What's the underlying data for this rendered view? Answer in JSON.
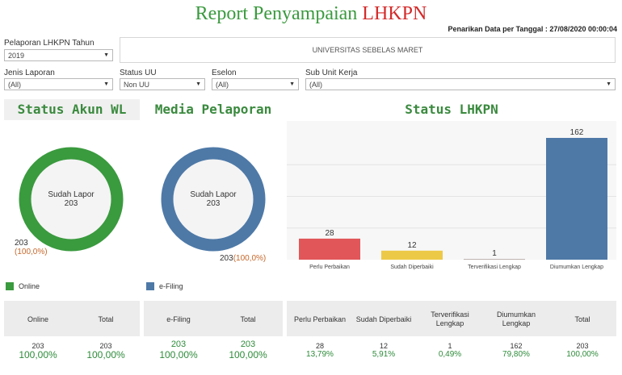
{
  "header": {
    "title_part1": "Report Penyampaian",
    "title_part2": "LHKPN",
    "data_date": "Penarikan Data per Tanggal : 27/08/2020 00:00:04"
  },
  "filters": {
    "tahun": {
      "label": "Pelaporan LHKPN Tahun",
      "value": "2019"
    },
    "institution": "UNIVERSITAS SEBELAS MARET",
    "jenis": {
      "label": "Jenis Laporan",
      "value": "(All)"
    },
    "status_uu": {
      "label": "Status UU",
      "value": "Non UU"
    },
    "eselon": {
      "label": "Eselon",
      "value": "(All)"
    },
    "sub_unit": {
      "label": "Sub Unit Kerja",
      "value": "(All)"
    }
  },
  "colors": {
    "green": "#3a9a3e",
    "blue": "#4e79a7",
    "red": "#e15759",
    "yellow": "#edc948",
    "gray": "#bab0ac"
  },
  "akun": {
    "title": "Status Akun WL",
    "center_label": "Sudah Lapor",
    "center_value": "203",
    "value": "203",
    "pct": "(100,0%)",
    "legend": "Online",
    "table": {
      "headers": [
        "Online",
        "Total"
      ],
      "values": [
        "203",
        "203"
      ],
      "pcts": [
        "100,00%",
        "100,00%"
      ]
    }
  },
  "media": {
    "title": "Media Pelaporan",
    "center_label": "Sudah Lapor",
    "center_value": "203",
    "value": "203",
    "pct": "(100,0%)",
    "legend": "e-Filing",
    "table": {
      "headers": [
        "e-Filing",
        "Total"
      ],
      "values": [
        "203",
        "203"
      ],
      "pcts": [
        "100,00%",
        "100,00%"
      ]
    }
  },
  "status": {
    "title": "Status LHKPN",
    "table": {
      "headers": [
        "Perlu Perbaikan",
        "Sudah Diperbaiki",
        "Terverifikasi Lengkap",
        "Diumumkan Lengkap",
        "Total"
      ],
      "values": [
        "28",
        "12",
        "1",
        "162",
        "203"
      ],
      "pcts": [
        "13,79%",
        "5,91%",
        "0,49%",
        "79,80%",
        "100,00%"
      ]
    }
  },
  "chart_data": [
    {
      "type": "pie",
      "title": "Status Akun WL",
      "slices": [
        {
          "label": "Online",
          "value": 203,
          "pct": 100.0
        }
      ]
    },
    {
      "type": "pie",
      "title": "Media Pelaporan",
      "slices": [
        {
          "label": "e-Filing",
          "value": 203,
          "pct": 100.0
        }
      ]
    },
    {
      "type": "bar",
      "title": "Status LHKPN",
      "categories": [
        "Perlu Perbaikan",
        "Sudah Diperbaiki",
        "Terverifikasi Lengkap",
        "Diumumkan Lengkap"
      ],
      "values": [
        28,
        12,
        1,
        162
      ],
      "ylim": [
        0,
        162
      ],
      "grid": true
    }
  ]
}
